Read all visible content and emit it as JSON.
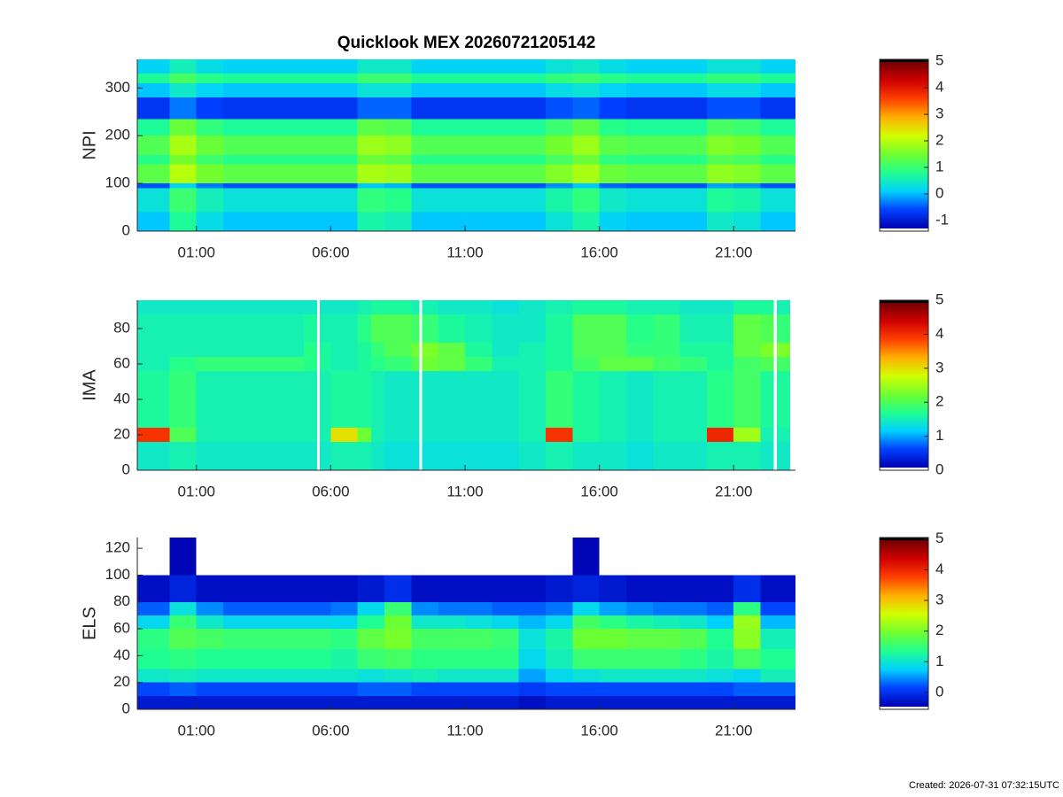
{
  "chart_data": [
    {
      "type": "heatmap",
      "title": "Quicklook MEX 20260721205142",
      "ylabel": "NPI",
      "xlim": [
        -1.2,
        23.3
      ],
      "xticks": [
        {
          "value": 1,
          "label": "01:00"
        },
        {
          "value": 6,
          "label": "06:00"
        },
        {
          "value": 11,
          "label": "11:00"
        },
        {
          "value": 16,
          "label": "16:00"
        },
        {
          "value": 21,
          "label": "21:00"
        }
      ],
      "ylim": [
        0,
        360
      ],
      "yticks": [
        0,
        100,
        200,
        300
      ],
      "xbins": [
        -1.2,
        0,
        1,
        2,
        3,
        4,
        5,
        6,
        7,
        8,
        9,
        10,
        11,
        12,
        13,
        14,
        15,
        16,
        17,
        18,
        19,
        20,
        21,
        22,
        23.3
      ],
      "ybins": [
        0,
        40,
        90,
        100,
        140,
        160,
        200,
        235,
        280,
        310,
        330,
        360
      ],
      "z": [
        [
          0,
          0.7,
          0.2,
          0,
          0,
          0,
          0,
          0,
          0.6,
          0.5,
          0,
          0,
          0,
          0,
          0,
          0.3,
          0.6,
          0.1,
          0,
          0,
          0,
          0.4,
          0.3,
          0
        ],
        [
          0.3,
          1,
          0.5,
          0.3,
          0.3,
          0.3,
          0.3,
          0.3,
          0.9,
          0.8,
          0.3,
          0.3,
          0.3,
          0.3,
          0.3,
          0.6,
          0.9,
          0.4,
          0.3,
          0.3,
          0.3,
          0.7,
          0.6,
          0.3
        ],
        [
          -0.6,
          0.1,
          -0.4,
          -0.6,
          -0.6,
          -0.6,
          -0.6,
          -0.6,
          0,
          -0.1,
          -0.6,
          -0.6,
          -0.6,
          -0.6,
          -0.6,
          -0.3,
          0,
          -0.5,
          -0.6,
          -0.6,
          -0.6,
          -0.2,
          -0.3,
          -0.6
        ],
        [
          1.3,
          2,
          1.5,
          1.3,
          1.3,
          1.3,
          1.3,
          1.3,
          1.9,
          1.8,
          1.3,
          1.3,
          1.3,
          1.3,
          1.3,
          1.6,
          1.9,
          1.4,
          1.3,
          1.3,
          1.3,
          1.7,
          1.6,
          1.3
        ],
        [
          0.8,
          1.5,
          1,
          0.8,
          0.8,
          0.8,
          0.8,
          0.8,
          1.4,
          1.3,
          0.8,
          0.8,
          0.8,
          0.8,
          0.8,
          1.1,
          1.4,
          0.9,
          0.8,
          0.8,
          0.8,
          1.2,
          1.1,
          0.8
        ],
        [
          1.2,
          1.9,
          1.4,
          1.2,
          1.2,
          1.2,
          1.2,
          1.2,
          1.8,
          1.7,
          1.2,
          1.2,
          1.2,
          1.2,
          1.2,
          1.5,
          1.8,
          1.3,
          1.2,
          1.2,
          1.2,
          1.6,
          1.5,
          1.2
        ],
        [
          0.7,
          1.4,
          0.9,
          0.7,
          0.7,
          0.7,
          0.7,
          0.7,
          1.3,
          1.2,
          0.7,
          0.7,
          0.7,
          0.7,
          0.7,
          1,
          1.3,
          0.8,
          0.7,
          0.7,
          0.7,
          1.1,
          1,
          0.7
        ],
        [
          -0.8,
          -0.4,
          -0.7,
          -0.8,
          -0.8,
          -0.8,
          -0.8,
          -0.8,
          -0.5,
          -0.5,
          -0.8,
          -0.8,
          -0.8,
          -0.8,
          -0.8,
          -0.6,
          -0.5,
          -0.7,
          -0.8,
          -0.8,
          -0.8,
          -0.6,
          -0.6,
          -0.8
        ],
        [
          0,
          0.4,
          0.1,
          0,
          0,
          0,
          0,
          0,
          0.3,
          0.3,
          0,
          0,
          0,
          0,
          0,
          0.2,
          0.3,
          0.1,
          0,
          0,
          0,
          0.2,
          0.2,
          0
        ],
        [
          0.7,
          1.1,
          0.8,
          0.7,
          0.7,
          0.7,
          0.7,
          0.7,
          1,
          1,
          0.7,
          0.7,
          0.7,
          0.7,
          0.7,
          0.9,
          1,
          0.8,
          0.7,
          0.7,
          0.7,
          0.9,
          0.9,
          0.7
        ],
        [
          0.1,
          0.5,
          0.2,
          0.1,
          0.1,
          0.1,
          0.1,
          0.1,
          0.4,
          0.4,
          0.1,
          0.1,
          0.1,
          0.1,
          0.1,
          0.3,
          0.4,
          0.2,
          0.1,
          0.1,
          0.1,
          0.3,
          0.3,
          0.1
        ]
      ],
      "colorscale": [
        "#0000b0",
        "#0040ff",
        "#00d0ff",
        "#20ff90",
        "#70ff30",
        "#d0ff00",
        "#ffb000",
        "#ff4000",
        "#d00000",
        "#700000"
      ],
      "under_color": "#ffffff",
      "over_color": "#000000",
      "colorbar": {
        "clim": [
          -1.4,
          5.07
        ],
        "ticks": [
          -1,
          0,
          1,
          2,
          3,
          4,
          5
        ]
      }
    },
    {
      "type": "heatmap",
      "ylabel": "IMA",
      "xlim": [
        -1.2,
        23.3
      ],
      "xticks": [
        {
          "value": 1,
          "label": "01:00"
        },
        {
          "value": 6,
          "label": "06:00"
        },
        {
          "value": 11,
          "label": "11:00"
        },
        {
          "value": 16,
          "label": "16:00"
        },
        {
          "value": 21,
          "label": "21:00"
        }
      ],
      "ylim": [
        0,
        96
      ],
      "yticks": [
        0,
        20,
        40,
        60,
        80
      ],
      "xbins": [
        -1.2,
        0,
        1,
        2,
        3,
        4,
        5,
        5.5,
        5.6,
        6,
        7,
        7.5,
        8,
        9,
        9.3,
        9.4,
        10,
        11,
        12,
        13,
        14,
        15,
        16,
        17,
        18,
        19,
        20,
        21,
        22,
        22.5,
        22.6,
        23.1
      ],
      "ybins": [
        0,
        16,
        24,
        56,
        64,
        72,
        88,
        96
      ],
      "z": [
        [
          1.4,
          1.5,
          1.4,
          1.4,
          1.4,
          1.4,
          1.4,
          null,
          1.4,
          1.5,
          1.5,
          1.4,
          1.3,
          1.3,
          null,
          1.3,
          1.3,
          1.3,
          1.3,
          1.4,
          1.5,
          1.4,
          1.4,
          1.3,
          1.4,
          1.4,
          1.5,
          1.5,
          1.4,
          null,
          1.4
        ],
        [
          4.0,
          2.0,
          1.5,
          1.5,
          1.5,
          1.5,
          1.5,
          null,
          1.5,
          3.0,
          2.2,
          1.5,
          1.4,
          1.4,
          null,
          1.4,
          1.4,
          1.4,
          1.4,
          1.5,
          4.0,
          1.6,
          1.5,
          1.4,
          1.5,
          1.5,
          4.1,
          2.5,
          1.5,
          null,
          1.5
        ],
        [
          1.6,
          1.8,
          1.5,
          1.5,
          1.5,
          1.5,
          1.5,
          null,
          1.5,
          1.6,
          1.6,
          1.5,
          1.4,
          1.4,
          null,
          1.4,
          1.4,
          1.4,
          1.4,
          1.5,
          1.8,
          1.6,
          1.5,
          1.4,
          1.5,
          1.5,
          1.7,
          1.9,
          1.6,
          null,
          1.6
        ],
        [
          1.5,
          1.7,
          1.8,
          1.8,
          1.8,
          1.8,
          1.7,
          null,
          1.6,
          1.5,
          1.6,
          1.7,
          1.8,
          2.0,
          null,
          2.2,
          2.1,
          1.8,
          1.5,
          1.5,
          1.6,
          1.9,
          2.1,
          2.1,
          1.9,
          1.8,
          1.6,
          1.9,
          2.0,
          null,
          1.9
        ],
        [
          1.5,
          1.5,
          1.5,
          1.5,
          1.5,
          1.5,
          1.7,
          null,
          1.6,
          1.5,
          1.6,
          1.8,
          2.0,
          2.2,
          null,
          2.3,
          2.1,
          1.6,
          1.4,
          1.5,
          1.6,
          2.0,
          2.0,
          1.8,
          1.8,
          1.6,
          1.6,
          2.1,
          2.3,
          null,
          2.3
        ],
        [
          1.5,
          1.5,
          1.5,
          1.5,
          1.5,
          1.5,
          1.6,
          null,
          1.5,
          1.5,
          1.7,
          2.0,
          2.0,
          1.9,
          null,
          1.8,
          1.6,
          1.5,
          1.4,
          1.4,
          1.6,
          2.0,
          2.0,
          1.7,
          1.8,
          1.5,
          1.5,
          2.1,
          2.0,
          null,
          1.8
        ],
        [
          1.4,
          1.4,
          1.4,
          1.4,
          1.4,
          1.4,
          1.4,
          null,
          1.4,
          1.4,
          1.5,
          1.6,
          1.6,
          1.5,
          null,
          1.5,
          1.4,
          1.4,
          1.3,
          1.4,
          1.5,
          1.6,
          1.6,
          1.5,
          1.5,
          1.4,
          1.4,
          1.6,
          1.6,
          null,
          1.5
        ]
      ],
      "colorscale": [
        "#0000b0",
        "#0040ff",
        "#00d0ff",
        "#20ff90",
        "#70ff30",
        "#d0ff00",
        "#ffb000",
        "#ff4000",
        "#d00000",
        "#700000"
      ],
      "under_color": "#ffffff",
      "over_color": "#000000",
      "colorbar": {
        "clim": [
          0,
          5
        ],
        "ticks": [
          0,
          1,
          2,
          3,
          4,
          5
        ]
      }
    },
    {
      "type": "heatmap",
      "ylabel": "ELS",
      "xlim": [
        -1.2,
        23.3
      ],
      "xticks": [
        {
          "value": 1,
          "label": "01:00"
        },
        {
          "value": 6,
          "label": "06:00"
        },
        {
          "value": 11,
          "label": "11:00"
        },
        {
          "value": 16,
          "label": "16:00"
        },
        {
          "value": 21,
          "label": "21:00"
        }
      ],
      "ylim": [
        0,
        128
      ],
      "yticks": [
        0,
        20,
        40,
        60,
        80,
        100,
        120
      ],
      "xbins": [
        -1.2,
        0,
        1,
        2,
        3,
        4,
        5,
        6,
        7,
        8,
        9,
        10,
        11,
        12,
        13,
        14,
        15,
        16,
        17,
        18,
        19,
        20,
        21,
        22,
        23.3
      ],
      "ybins": [
        0,
        10,
        20,
        30,
        45,
        60,
        70,
        80,
        100,
        128
      ],
      "z": [
        [
          -0.3,
          -0.3,
          -0.3,
          -0.3,
          -0.3,
          -0.3,
          -0.3,
          -0.3,
          -0.3,
          -0.3,
          -0.3,
          -0.3,
          -0.3,
          -0.3,
          -0.4,
          -0.3,
          -0.3,
          -0.3,
          -0.3,
          -0.3,
          -0.3,
          -0.3,
          -0.3,
          -0.3
        ],
        [
          0.1,
          0.2,
          0.1,
          0.1,
          0.1,
          0.1,
          0.1,
          0.1,
          0.2,
          0.2,
          0.1,
          0.1,
          0.1,
          0.1,
          0,
          0.1,
          0.1,
          0.1,
          0.1,
          0.1,
          0.1,
          0.1,
          0.2,
          0.2
        ],
        [
          1,
          1.1,
          1,
          1,
          1,
          1,
          1,
          1,
          0.9,
          1,
          1.1,
          1,
          1,
          1,
          0.5,
          0.8,
          0.9,
          1,
          1,
          1,
          1,
          0.9,
          0.8,
          1.1
        ],
        [
          1.3,
          1.4,
          1.3,
          1.3,
          1.3,
          1.3,
          1.3,
          1.2,
          1.5,
          1.6,
          1.4,
          1.4,
          1.4,
          1.4,
          0.8,
          1.1,
          1.5,
          1.5,
          1.5,
          1.5,
          1.4,
          1.2,
          1.6,
          1.3
        ],
        [
          1.4,
          1.7,
          1.6,
          1.5,
          1.5,
          1.5,
          1.5,
          1.4,
          1.8,
          2.0,
          1.6,
          1.6,
          1.6,
          1.5,
          0.9,
          1.2,
          1.9,
          1.9,
          1.8,
          1.8,
          1.7,
          1.3,
          2.1,
          1.1
        ],
        [
          0.8,
          1.5,
          1.0,
          0.8,
          0.8,
          0.8,
          0.8,
          0.8,
          1.3,
          1.9,
          1.0,
          1.0,
          0.9,
          0.8,
          0.6,
          0.8,
          1.6,
          1.4,
          1.2,
          1.1,
          1.0,
          0.7,
          2.2,
          0.6
        ],
        [
          0.2,
          0.9,
          0.4,
          0.2,
          0.2,
          0.2,
          0.2,
          0.3,
          0.8,
          1.5,
          0.4,
          0.3,
          0.3,
          0.2,
          0.2,
          0.3,
          0.8,
          0.5,
          0.4,
          0.3,
          0.3,
          0.2,
          1.4,
          0.1
        ],
        [
          -0.4,
          -0.2,
          -0.4,
          -0.4,
          -0.4,
          -0.4,
          -0.4,
          -0.4,
          -0.3,
          -0.1,
          -0.4,
          -0.4,
          -0.4,
          -0.4,
          -0.4,
          -0.3,
          -0.2,
          -0.3,
          -0.4,
          -0.4,
          -0.4,
          -0.4,
          -0.1,
          -0.4
        ],
        [
          -0.6,
          -0.5,
          -0.6,
          -0.6,
          -0.6,
          -0.6,
          -0.6,
          -0.6,
          -0.6,
          -0.6,
          -0.6,
          -0.6,
          -0.6,
          -0.6,
          -0.6,
          -0.6,
          -0.5,
          -0.6,
          -0.6,
          -0.6,
          -0.6,
          -0.6,
          -0.6,
          -0.6
        ]
      ],
      "colorscale": [
        "#0000b0",
        "#0040ff",
        "#00d0ff",
        "#20ff90",
        "#70ff30",
        "#d0ff00",
        "#ffb000",
        "#ff4000",
        "#d00000",
        "#700000"
      ],
      "under_color": "#ffffff",
      "over_color": "#000000",
      "colorbar": {
        "clim": [
          -0.55,
          5.05
        ],
        "ticks": [
          0,
          1,
          2,
          3,
          4,
          5
        ]
      }
    }
  ],
  "footnote": "Created: 2026-07-31 07:32:15UTC"
}
